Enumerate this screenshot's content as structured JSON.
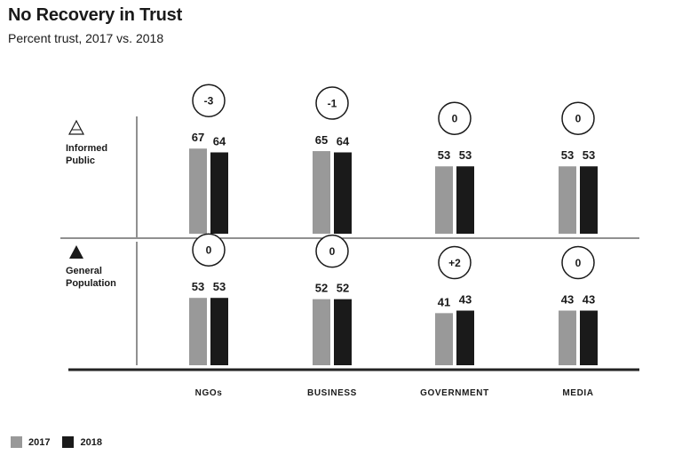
{
  "title": "No Recovery in Trust",
  "subtitle": "Percent trust, 2017 vs. 2018",
  "colors": {
    "y2017": "#999999",
    "y2018": "#1a1a1a",
    "rule": "#222222"
  },
  "chart_data": {
    "type": "bar",
    "categories": [
      "NGOs",
      "BUSINESS",
      "GOVERNMENT",
      "MEDIA"
    ],
    "series_names": [
      "2017",
      "2018"
    ],
    "panels": [
      {
        "name": "Informed Public",
        "icon": "triangle-outline-icon",
        "series": [
          {
            "name": "2017",
            "values": [
              67,
              65,
              53,
              53
            ]
          },
          {
            "name": "2018",
            "values": [
              64,
              64,
              53,
              53
            ]
          }
        ],
        "changes": [
          "-3",
          "-1",
          "0",
          "0"
        ]
      },
      {
        "name": "General Population",
        "icon": "triangle-filled-icon",
        "series": [
          {
            "name": "2017",
            "values": [
              53,
              52,
              41,
              43
            ]
          },
          {
            "name": "2018",
            "values": [
              53,
              52,
              43,
              43
            ]
          }
        ],
        "changes": [
          "0",
          "0",
          "+2",
          "0"
        ]
      }
    ]
  },
  "legend": [
    {
      "label": "2017",
      "color": "#999999"
    },
    {
      "label": "2018",
      "color": "#1a1a1a"
    }
  ]
}
